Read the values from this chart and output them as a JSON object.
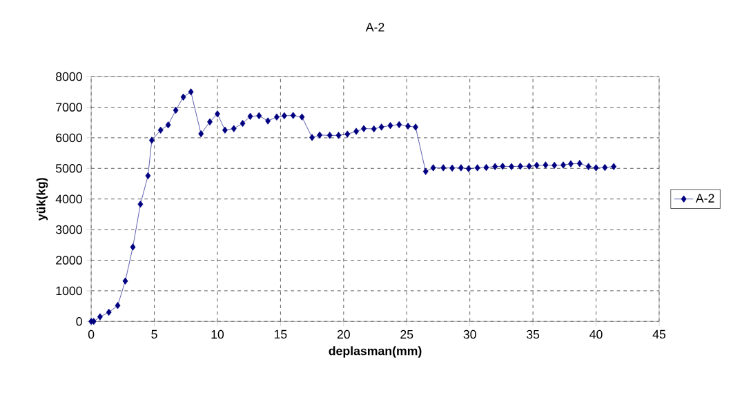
{
  "chart_data": {
    "type": "line",
    "title": "A-2",
    "xlabel": "deplasman(mm)",
    "ylabel": "yük(kg)",
    "xlim": [
      0,
      45
    ],
    "xticks": [
      0,
      5,
      10,
      15,
      20,
      25,
      30,
      35,
      40,
      45
    ],
    "ylim": [
      0,
      8000
    ],
    "yticks": [
      0,
      1000,
      2000,
      3000,
      4000,
      5000,
      6000,
      7000,
      8000
    ],
    "grid": true,
    "legend": "right",
    "marker": "diamond",
    "line_style": "solid",
    "series": [
      {
        "name": "A-2",
        "color": "#000080",
        "x": [
          0,
          0.2,
          0.7,
          1.4,
          2.1,
          2.7,
          3.3,
          3.9,
          4.5,
          4.8,
          5.5,
          6.1,
          6.7,
          7.3,
          7.9,
          8.7,
          9.4,
          10,
          10.6,
          11.3,
          12,
          12.6,
          13.3,
          14,
          14.7,
          15.3,
          16,
          16.7,
          17.5,
          18.1,
          18.9,
          19.6,
          20.3,
          21,
          21.6,
          22.4,
          23,
          23.7,
          24.4,
          25.1,
          25.7,
          26.5,
          27.1,
          27.9,
          28.6,
          29.3,
          29.9,
          30.6,
          31.3,
          32,
          32.6,
          33.3,
          34,
          34.7,
          35.3,
          36,
          36.7,
          37.4,
          38,
          38.7,
          39.4,
          40,
          40.7,
          41.4
        ],
        "values": [
          0,
          0,
          150,
          300,
          520,
          1320,
          2430,
          3830,
          4760,
          5920,
          6250,
          6420,
          6900,
          7330,
          7500,
          6130,
          6520,
          6780,
          6250,
          6300,
          6470,
          6700,
          6720,
          6550,
          6680,
          6720,
          6730,
          6680,
          6010,
          6090,
          6080,
          6080,
          6120,
          6210,
          6300,
          6290,
          6350,
          6400,
          6430,
          6380,
          6350,
          4900,
          5020,
          5020,
          5010,
          5020,
          4990,
          5020,
          5030,
          5060,
          5070,
          5060,
          5070,
          5070,
          5100,
          5110,
          5100,
          5110,
          5150,
          5160,
          5060,
          5020,
          5030,
          5060
        ]
      }
    ]
  }
}
